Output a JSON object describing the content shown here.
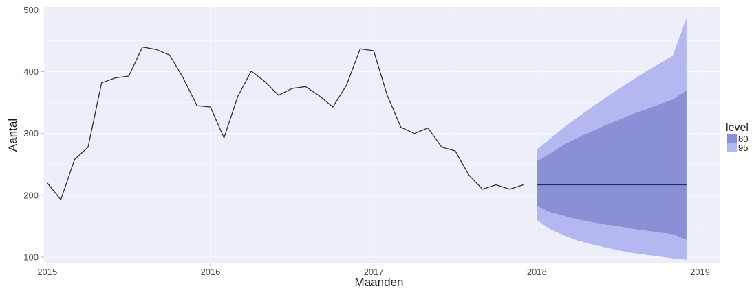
{
  "chart_data": {
    "type": "line",
    "xlabel": "Maanden",
    "ylabel": "Aantal",
    "xlim": [
      2014.98,
      2019.12
    ],
    "ylim": [
      90,
      505
    ],
    "x_ticks": [
      2015,
      2016,
      2017,
      2018,
      2019
    ],
    "y_ticks": [
      100,
      200,
      300,
      400,
      500
    ],
    "grid": true,
    "legend_position": "right",
    "legend_title": "level",
    "series": [
      {
        "kind": "observed",
        "color": "#2b2d4a",
        "x": [
          2015.0,
          2015.083,
          2015.167,
          2015.25,
          2015.333,
          2015.417,
          2015.5,
          2015.583,
          2015.667,
          2015.75,
          2015.833,
          2015.917,
          2016.0,
          2016.083,
          2016.167,
          2016.25,
          2016.333,
          2016.417,
          2016.5,
          2016.583,
          2016.667,
          2016.75,
          2016.833,
          2016.917,
          2017.0,
          2017.083,
          2017.167,
          2017.25,
          2017.333,
          2017.417,
          2017.5,
          2017.583,
          2017.667,
          2017.75,
          2017.833,
          2017.917
        ],
        "y": [
          220,
          193,
          258,
          278,
          382,
          390,
          393,
          440,
          436,
          427,
          390,
          345,
          343,
          293,
          360,
          401,
          384,
          362,
          373,
          376,
          361,
          343,
          378,
          437,
          434,
          362,
          310,
          300,
          309,
          278,
          272,
          233,
          210,
          217,
          210,
          217
        ]
      },
      {
        "kind": "forecast",
        "color": "#1f2f6b",
        "x": [
          2018.0,
          2018.917
        ],
        "y": [
          217,
          217
        ]
      }
    ],
    "intervals": [
      {
        "level": "95",
        "color": "#b4b7f0",
        "x": [
          2018.0,
          2018.083,
          2018.167,
          2018.25,
          2018.333,
          2018.417,
          2018.5,
          2018.583,
          2018.667,
          2018.75,
          2018.833,
          2018.917
        ],
        "lower": [
          160,
          145,
          135,
          127,
          121,
          116,
          111,
          107,
          104,
          101,
          98,
          96
        ],
        "upper": [
          274,
          292,
          310,
          326,
          342,
          357,
          372,
          386,
          400,
          413,
          426,
          487
        ]
      },
      {
        "level": "80",
        "color": "#8a8fd6",
        "x": [
          2018.0,
          2018.083,
          2018.167,
          2018.25,
          2018.333,
          2018.417,
          2018.5,
          2018.583,
          2018.667,
          2018.75,
          2018.833,
          2018.917
        ],
        "lower": [
          183,
          173,
          167,
          161,
          157,
          153,
          150,
          146,
          143,
          140,
          137,
          128
        ],
        "upper": [
          255,
          268,
          282,
          293,
          303,
          313,
          322,
          331,
          339,
          347,
          355,
          370
        ]
      }
    ],
    "legend": [
      {
        "label": "80",
        "color": "#8a8fd6"
      },
      {
        "label": "95",
        "color": "#b4b7f0"
      }
    ]
  },
  "colors": {
    "panel_background": "#eceef8",
    "grid_line": "#f7f8fc"
  }
}
